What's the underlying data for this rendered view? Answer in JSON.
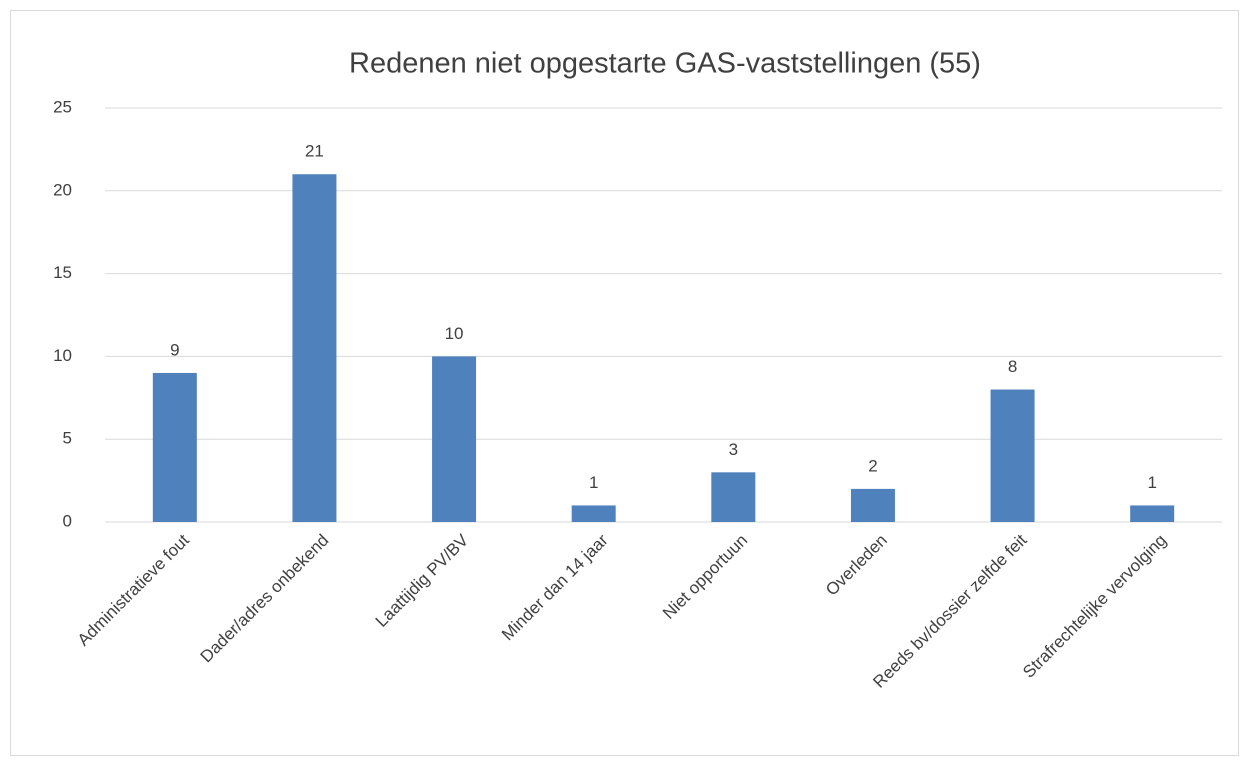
{
  "chart_data": {
    "type": "bar",
    "title": "Redenen niet opgestarte GAS-vaststellingen (55)",
    "categories": [
      "Administratieve fout",
      "Dader/adres onbekend",
      "Laattijdig PV/BV",
      "Minder dan 14 jaar",
      "Niet opportuun",
      "Overleden",
      "Reeds bv/dossier zelfde feit",
      "Strafrechtelijke vervolging"
    ],
    "values": [
      9,
      21,
      10,
      1,
      3,
      2,
      8,
      1
    ],
    "color": "#4f81bd",
    "ylim": [
      0,
      25
    ],
    "yticks": [
      0,
      5,
      10,
      15,
      20,
      25
    ],
    "grid": true
  }
}
